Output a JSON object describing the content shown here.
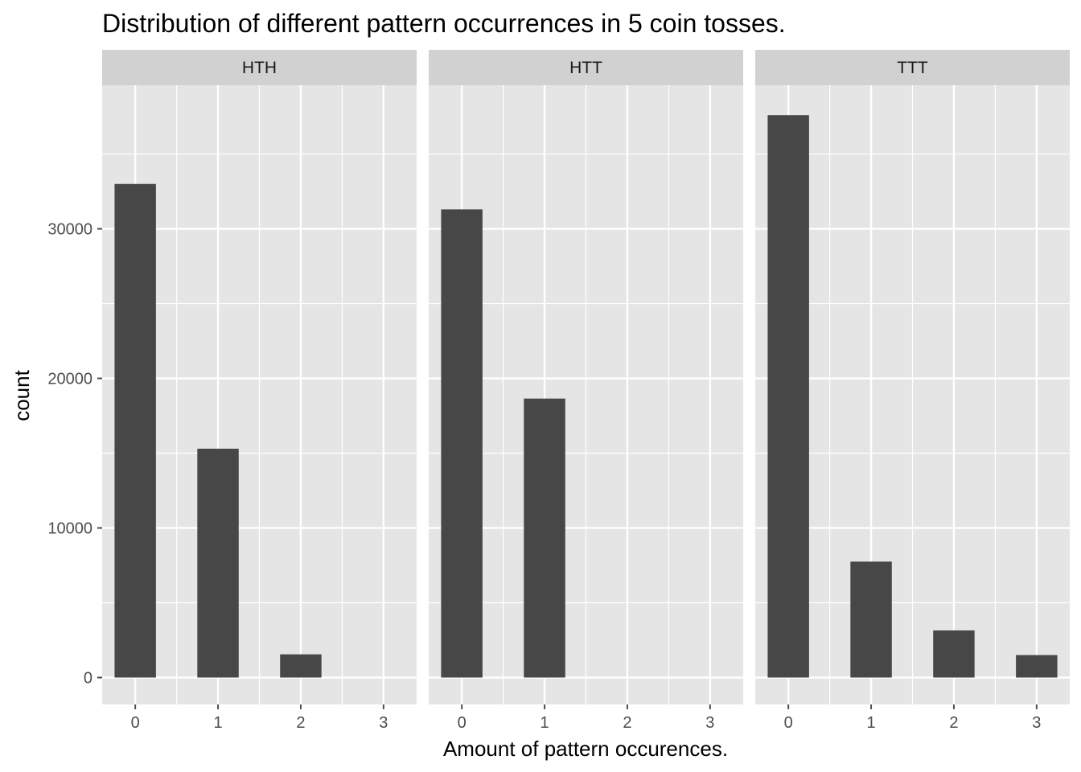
{
  "chart_data": {
    "type": "bar",
    "title": "Distribution of different pattern occurrences in 5 coin tosses.",
    "xlabel": "Amount of pattern occurences.",
    "ylabel": "count",
    "categories": [
      "0",
      "1",
      "2",
      "3"
    ],
    "y_ticks": [
      "0",
      "10000",
      "20000",
      "30000"
    ],
    "ylim": [
      -1800,
      39600
    ],
    "grid": true,
    "facets": [
      {
        "name": "HTH",
        "values": [
          33000,
          15300,
          1550,
          0
        ]
      },
      {
        "name": "HTT",
        "values": [
          31300,
          18650,
          0,
          0
        ]
      },
      {
        "name": "TTT",
        "values": [
          37600,
          7750,
          3150,
          1500
        ]
      }
    ],
    "colors": {
      "bar": "#474747",
      "panel": "#e5e5e5",
      "strip": "#d1d1d1",
      "grid": "#ffffff",
      "tick": "#4d4d4d"
    }
  }
}
